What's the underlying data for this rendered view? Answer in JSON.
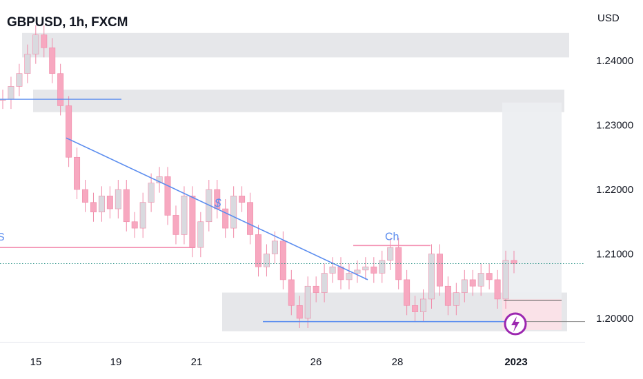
{
  "header": {
    "title": "GBPUSD, 1h, FXCM"
  },
  "chart_data": {
    "type": "candlestick",
    "symbol": "GBPUSD",
    "timeframe": "1h",
    "source": "FXCM",
    "currency": "USD",
    "ylim": [
      1.1965,
      1.2465
    ],
    "y_ticks": [
      "1.24000",
      "1.23000",
      "1.22000",
      "1.21000",
      "1.20000"
    ],
    "x_ticks": [
      "15",
      "19",
      "21",
      "26",
      "28",
      "2023"
    ],
    "current_price": 1.2085,
    "colors": {
      "up": "#d9dadf",
      "down": "#f7a8c0",
      "wick": "#f08aa8",
      "trend": "#5b8def",
      "zone": "#e3e4e8",
      "price_line": "#3a9a8f",
      "alert": "#9c27b0"
    },
    "zones": [
      {
        "from": 1.2405,
        "to": 1.2443
      },
      {
        "from": 1.232,
        "to": 1.2355
      },
      {
        "from": 1.198,
        "to": 1.204
      }
    ],
    "trendline": {
      "from": 1.228,
      "to": 1.206
    },
    "annotations": [
      {
        "label": "Ch",
        "level": 1.2113
      },
      {
        "label": "$",
        "level": 1.2185
      },
      {
        "label": "S",
        "level": 1.211
      }
    ],
    "levels": [
      1.234,
      1.211,
      1.1995,
      1.2028
    ],
    "candles_close": [
      1.234,
      1.236,
      1.238,
      1.241,
      1.244,
      1.242,
      1.238,
      1.233,
      1.225,
      1.22,
      1.218,
      1.2165,
      1.219,
      1.217,
      1.22,
      1.215,
      1.214,
      1.218,
      1.221,
      1.222,
      1.216,
      1.213,
      1.219,
      1.211,
      1.215,
      1.22,
      1.217,
      1.214,
      1.219,
      1.218,
      1.213,
      1.208,
      1.21,
      1.212,
      1.206,
      1.202,
      1.2,
      1.205,
      1.204,
      1.207,
      1.208,
      1.206,
      1.207,
      1.2075,
      1.208,
      1.207,
      1.209,
      1.211,
      1.206,
      1.202,
      1.201,
      1.203,
      1.21,
      1.205,
      1.202,
      1.204,
      1.206,
      1.205,
      1.207,
      1.206,
      1.203,
      1.209,
      1.2085
    ]
  }
}
